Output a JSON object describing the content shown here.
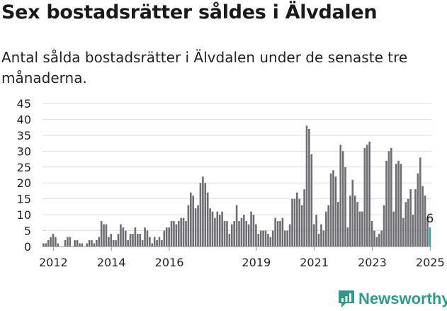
{
  "header": {
    "title": "Sex bostadsrätter såldes i Älvdalen",
    "subtitle": "Antal sålda bostadsrätter i Älvdalen under de senaste tre månaderna."
  },
  "brand": {
    "name": "Newsworthy",
    "color": "#2f9a8c"
  },
  "colors": {
    "bar": "#6e6d73",
    "highlight": "#2ea6a0",
    "grid": "#dddddd"
  },
  "chart_data": {
    "type": "bar",
    "title": "Sex bostadsrätter såldes i Älvdalen",
    "xlabel": "",
    "ylabel": "",
    "ylim": [
      0,
      45
    ],
    "yticks": [
      "0",
      "5",
      "10",
      "15",
      "20",
      "25",
      "30",
      "35",
      "40",
      "45"
    ],
    "xticks": [
      {
        "label": "2012",
        "index": 4
      },
      {
        "label": "2014",
        "index": 28
      },
      {
        "label": "2016",
        "index": 52
      },
      {
        "label": "2019",
        "index": 88
      },
      {
        "label": "2021",
        "index": 112
      },
      {
        "label": "2023",
        "index": 136
      },
      {
        "label": "2025",
        "index": 160
      }
    ],
    "highlight_label": "6",
    "values": [
      1,
      1,
      2,
      3,
      4,
      3,
      1,
      0,
      0,
      2,
      3,
      3,
      0,
      2,
      2,
      1,
      1,
      0,
      1,
      2,
      2,
      1,
      2,
      3,
      8,
      7,
      7,
      3,
      4,
      2,
      2,
      4,
      7,
      6,
      5,
      2,
      4,
      4,
      6,
      4,
      4,
      2,
      6,
      5,
      3,
      1,
      3,
      2,
      3,
      2,
      5,
      6,
      6,
      8,
      8,
      7,
      8,
      9,
      9,
      8,
      13,
      17,
      16,
      12,
      13,
      20,
      22,
      20,
      17,
      12,
      11,
      9,
      11,
      10,
      11,
      8,
      8,
      4,
      7,
      8,
      13,
      8,
      9,
      10,
      8,
      7,
      11,
      10,
      7,
      4,
      5,
      5,
      5,
      4,
      3,
      5,
      9,
      8,
      8,
      9,
      5,
      5,
      7,
      15,
      15,
      17,
      15,
      13,
      18,
      38,
      37,
      29,
      7,
      10,
      4,
      7,
      5,
      11,
      13,
      23,
      24,
      22,
      14,
      32,
      30,
      25,
      6,
      16,
      21,
      16,
      14,
      11,
      11,
      31,
      32,
      33,
      8,
      5,
      3,
      4,
      5,
      13,
      27,
      30,
      31,
      11,
      26,
      27,
      26,
      9,
      14,
      15,
      18,
      10,
      18,
      23,
      28,
      19,
      16,
      9,
      6
    ]
  }
}
